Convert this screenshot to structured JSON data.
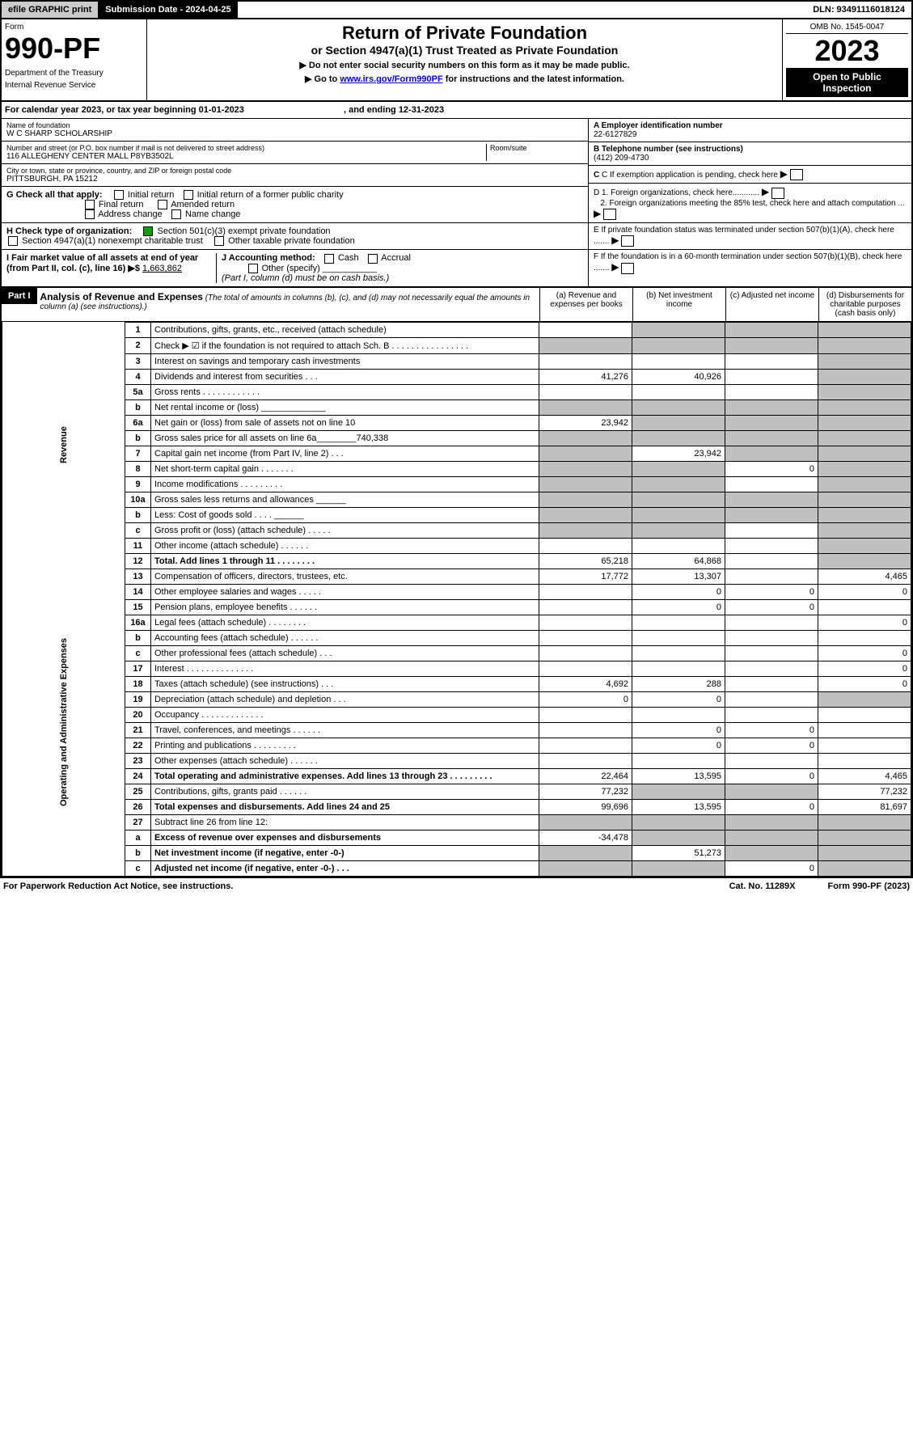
{
  "top": {
    "efile": "efile GRAPHIC print",
    "sub_date_label": "Submission Date - 2024-04-25",
    "dln": "DLN: 93491116018124"
  },
  "header": {
    "form_word": "Form",
    "form_num": "990-PF",
    "dept": "Department of the Treasury",
    "irs": "Internal Revenue Service",
    "title1": "Return of Private Foundation",
    "title2": "or Section 4947(a)(1) Trust Treated as Private Foundation",
    "instr1": "▶ Do not enter social security numbers on this form as it may be made public.",
    "instr2_pre": "▶ Go to ",
    "instr2_link": "www.irs.gov/Form990PF",
    "instr2_post": " for instructions and the latest information.",
    "omb": "OMB No. 1545-0047",
    "year": "2023",
    "open": "Open to Public Inspection"
  },
  "cal": {
    "text_a": "For calendar year 2023, or tax year beginning 01-01-2023",
    "text_b": ", and ending 12-31-2023"
  },
  "info": {
    "name_label": "Name of foundation",
    "name": "W C SHARP SCHOLARSHIP",
    "addr_label": "Number and street (or P.O. box number if mail is not delivered to street address)",
    "addr": "116 ALLEGHENY CENTER MALL P8YB3502L",
    "room_label": "Room/suite",
    "city_label": "City or town, state or province, country, and ZIP or foreign postal code",
    "city": "PITTSBURGH, PA  15212",
    "a_label": "A Employer identification number",
    "a_val": "22-6127829",
    "b_label": "B Telephone number (see instructions)",
    "b_val": "(412) 209-4730",
    "c_label": "C If exemption application is pending, check here",
    "d1": "D 1. Foreign organizations, check here............",
    "d2": "2. Foreign organizations meeting the 85% test, check here and attach computation ...",
    "e": "E  If private foundation status was terminated under section 507(b)(1)(A), check here .......",
    "f": "F  If the foundation is in a 60-month termination under section 507(b)(1)(B), check here .......",
    "g_label": "G Check all that apply:",
    "g_opts": [
      "Initial return",
      "Initial return of a former public charity",
      "Final return",
      "Amended return",
      "Address change",
      "Name change"
    ],
    "h_label": "H Check type of organization:",
    "h_opt1": "Section 501(c)(3) exempt private foundation",
    "h_opt2": "Section 4947(a)(1) nonexempt charitable trust",
    "h_opt3": "Other taxable private foundation",
    "i_label": "I Fair market value of all assets at end of year (from Part II, col. (c), line 16) ▶$",
    "i_val": "1,663,862",
    "j_label": "J Accounting method:",
    "j_opts": [
      "Cash",
      "Accrual"
    ],
    "j_other": "Other (specify)",
    "j_note": "(Part I, column (d) must be on cash basis.)"
  },
  "part1": {
    "label": "Part I",
    "title": "Analysis of Revenue and Expenses",
    "note": "(The total of amounts in columns (b), (c), and (d) may not necessarily equal the amounts in column (a) (see instructions).)",
    "cols": [
      "(a)   Revenue and expenses per books",
      "(b)   Net investment income",
      "(c)   Adjusted net income",
      "(d)  Disbursements for charitable purposes (cash basis only)"
    ]
  },
  "side": {
    "rev": "Revenue",
    "exp": "Operating and Administrative Expenses"
  },
  "rows": [
    {
      "n": "1",
      "d": "Contributions, gifts, grants, etc., received (attach schedule)",
      "a": "",
      "b": "g",
      "c": "g",
      "dd": "g"
    },
    {
      "n": "2",
      "d": "Check ▶ ☑ if the foundation is not required to attach Sch. B   .  .  .  .  .  .  .  .  .  .  .  .  .  .  .  .",
      "a": "g",
      "b": "g",
      "c": "g",
      "dd": "g"
    },
    {
      "n": "3",
      "d": "Interest on savings and temporary cash investments",
      "a": "",
      "b": "",
      "c": "",
      "dd": "g"
    },
    {
      "n": "4",
      "d": "Dividends and interest from securities   .   .   .",
      "a": "41,276",
      "b": "40,926",
      "c": "",
      "dd": "g"
    },
    {
      "n": "5a",
      "d": "Gross rents   .   .   .   .   .   .   .   .   .   .   .   .",
      "a": "",
      "b": "",
      "c": "",
      "dd": "g"
    },
    {
      "n": "b",
      "d": "Net rental income or (loss)  _____________",
      "a": "g",
      "b": "g",
      "c": "g",
      "dd": "g"
    },
    {
      "n": "6a",
      "d": "Net gain or (loss) from sale of assets not on line 10",
      "a": "23,942",
      "b": "g",
      "c": "g",
      "dd": "g"
    },
    {
      "n": "b",
      "d": "Gross sales price for all assets on line 6a________740,338",
      "a": "g",
      "b": "g",
      "c": "g",
      "dd": "g"
    },
    {
      "n": "7",
      "d": "Capital gain net income (from Part IV, line 2)   .   .   .",
      "a": "g",
      "b": "23,942",
      "c": "g",
      "dd": "g"
    },
    {
      "n": "8",
      "d": "Net short-term capital gain   .   .   .   .   .   .   .",
      "a": "g",
      "b": "g",
      "c": "0",
      "dd": "g"
    },
    {
      "n": "9",
      "d": "Income modifications   .   .   .   .   .   .   .   .   .",
      "a": "g",
      "b": "g",
      "c": "",
      "dd": "g"
    },
    {
      "n": "10a",
      "d": "Gross sales less returns and allowances  ______",
      "a": "g",
      "b": "g",
      "c": "g",
      "dd": "g"
    },
    {
      "n": "b",
      "d": "Less: Cost of goods sold   .   .   .   .   ______",
      "a": "g",
      "b": "g",
      "c": "g",
      "dd": "g"
    },
    {
      "n": "c",
      "d": "Gross profit or (loss) (attach schedule)   .   .   .   .   .",
      "a": "g",
      "b": "g",
      "c": "",
      "dd": "g"
    },
    {
      "n": "11",
      "d": "Other income (attach schedule)   .   .   .   .   .   .",
      "a": "",
      "b": "",
      "c": "",
      "dd": "g"
    },
    {
      "n": "12",
      "d": "Total. Add lines 1 through 11   .   .   .   .   .   .   .   .",
      "a": "65,218",
      "b": "64,868",
      "c": "",
      "dd": "g",
      "bold": true
    },
    {
      "n": "13",
      "d": "Compensation of officers, directors, trustees, etc.",
      "a": "17,772",
      "b": "13,307",
      "c": "",
      "dd": "4,465"
    },
    {
      "n": "14",
      "d": "Other employee salaries and wages   .   .   .   .   .",
      "a": "",
      "b": "0",
      "c": "0",
      "dd": "0"
    },
    {
      "n": "15",
      "d": "Pension plans, employee benefits   .   .   .   .   .   .",
      "a": "",
      "b": "0",
      "c": "0",
      "dd": ""
    },
    {
      "n": "16a",
      "d": "Legal fees (attach schedule)   .   .   .   .   .   .   .   .",
      "a": "",
      "b": "",
      "c": "",
      "dd": "0"
    },
    {
      "n": "b",
      "d": "Accounting fees (attach schedule)   .   .   .   .   .   .",
      "a": "",
      "b": "",
      "c": "",
      "dd": ""
    },
    {
      "n": "c",
      "d": "Other professional fees (attach schedule)   .   .   .",
      "a": "",
      "b": "",
      "c": "",
      "dd": "0"
    },
    {
      "n": "17",
      "d": "Interest   .   .   .   .   .   .   .   .   .   .   .   .   .   .",
      "a": "",
      "b": "",
      "c": "",
      "dd": "0"
    },
    {
      "n": "18",
      "d": "Taxes (attach schedule) (see instructions)   .   .   .",
      "a": "4,692",
      "b": "288",
      "c": "",
      "dd": "0"
    },
    {
      "n": "19",
      "d": "Depreciation (attach schedule) and depletion   .   .   .",
      "a": "0",
      "b": "0",
      "c": "",
      "dd": "g"
    },
    {
      "n": "20",
      "d": "Occupancy   .   .   .   .   .   .   .   .   .   .   .   .   .",
      "a": "",
      "b": "",
      "c": "",
      "dd": ""
    },
    {
      "n": "21",
      "d": "Travel, conferences, and meetings   .   .   .   .   .   .",
      "a": "",
      "b": "0",
      "c": "0",
      "dd": ""
    },
    {
      "n": "22",
      "d": "Printing and publications   .   .   .   .   .   .   .   .   .",
      "a": "",
      "b": "0",
      "c": "0",
      "dd": ""
    },
    {
      "n": "23",
      "d": "Other expenses (attach schedule)   .   .   .   .   .   .",
      "a": "",
      "b": "",
      "c": "",
      "dd": ""
    },
    {
      "n": "24",
      "d": "Total operating and administrative expenses. Add lines 13 through 23   .   .   .   .   .   .   .   .   .",
      "a": "22,464",
      "b": "13,595",
      "c": "0",
      "dd": "4,465",
      "bold": true
    },
    {
      "n": "25",
      "d": "Contributions, gifts, grants paid   .   .   .   .   .   .",
      "a": "77,232",
      "b": "g",
      "c": "g",
      "dd": "77,232"
    },
    {
      "n": "26",
      "d": "Total expenses and disbursements. Add lines 24 and 25",
      "a": "99,696",
      "b": "13,595",
      "c": "0",
      "dd": "81,697",
      "bold": true
    },
    {
      "n": "27",
      "d": "Subtract line 26 from line 12:",
      "a": "g",
      "b": "g",
      "c": "g",
      "dd": "g"
    },
    {
      "n": "a",
      "d": "Excess of revenue over expenses and disbursements",
      "a": "-34,478",
      "b": "g",
      "c": "g",
      "dd": "g",
      "bold": true
    },
    {
      "n": "b",
      "d": "Net investment income (if negative, enter -0-)",
      "a": "g",
      "b": "51,273",
      "c": "g",
      "dd": "g",
      "bold": true
    },
    {
      "n": "c",
      "d": "Adjusted net income (if negative, enter -0-)   .   .   .",
      "a": "g",
      "b": "g",
      "c": "0",
      "dd": "g",
      "bold": true
    }
  ],
  "footer": {
    "a": "For Paperwork Reduction Act Notice, see instructions.",
    "b": "Cat. No. 11289X",
    "c": "Form 990-PF (2023)"
  }
}
